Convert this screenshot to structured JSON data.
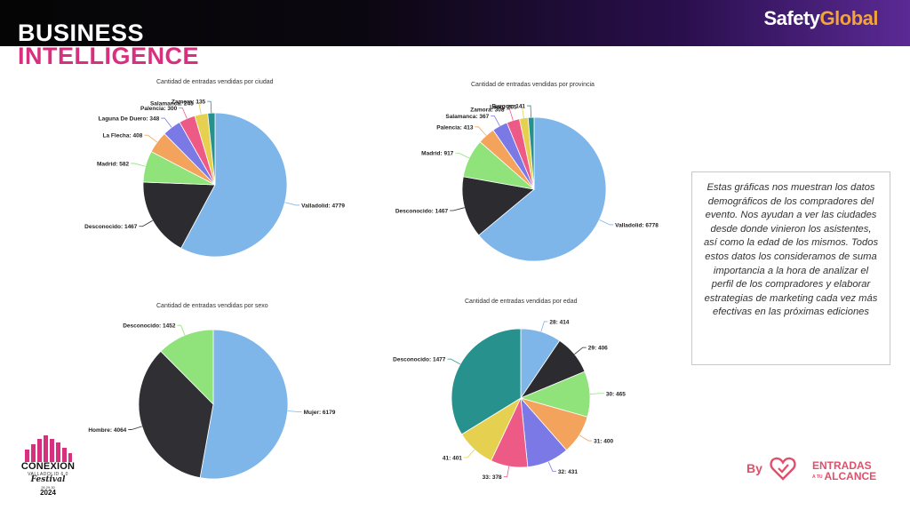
{
  "header": {
    "title_line1": "BUSINESS",
    "title_line2": "INTELLIGENCE",
    "brand_part1": "Safety",
    "brand_part2": "Global",
    "colors": {
      "title_accent": "#d6307f",
      "brand_accent": "#f2a33a"
    }
  },
  "info_text": "Estas gráficas nos muestran los datos demográficos de los compradores del evento. Nos ayudan a ver las ciudades desde donde vinieron los asistentes, así como la edad de los mismos. Todos estos datos los consideramos de suma importancia a la hora de analizar el perfil de los compradores y elaborar estrategias de marketing cada vez más efectivas en las próximas ediciones",
  "footer": {
    "festival_name": "CONEXION",
    "festival_city": "VALLADOLID 6.0",
    "festival_word": "Festival",
    "festival_dates": "28.29.30",
    "festival_year": "2024",
    "by_label": "By",
    "partner_line1": "ENTRADAS",
    "partner_small": "A TU",
    "partner_line2": "ALCANCE"
  },
  "chart_data": [
    {
      "type": "pie",
      "title": "Cantidad de entradas vendidas por ciudad",
      "categories": [
        "Valladolid",
        "Desconocido",
        "Madrid",
        "La Flecha",
        "Laguna De Duero",
        "Palencia",
        "Salamanca",
        "Zamora"
      ],
      "values": [
        4779,
        1467,
        582,
        408,
        348,
        300,
        243,
        135
      ],
      "colors": [
        "#7eb6e9",
        "#2b2b30",
        "#8fe37a",
        "#f4a35c",
        "#7b79e6",
        "#ee5a86",
        "#e5d14f",
        "#26918d"
      ]
    },
    {
      "type": "pie",
      "title": "Cantidad de entradas vendidas por provincia",
      "categories": [
        "Valladolid",
        "Desconocido",
        "Madrid",
        "Palencia",
        "Salamanca",
        "Zamora",
        "León",
        "Burgos"
      ],
      "values": [
        6778,
        1467,
        917,
        413,
        367,
        308,
        205,
        141
      ],
      "colors": [
        "#7eb6e9",
        "#2b2b30",
        "#8fe37a",
        "#f4a35c",
        "#7b79e6",
        "#ee5a86",
        "#e5d14f",
        "#26918d"
      ]
    },
    {
      "type": "pie",
      "title": "Cantidad de entradas vendidas por sexo",
      "categories": [
        "Mujer",
        "Hombre",
        "Desconocido"
      ],
      "values": [
        6179,
        4064,
        1452
      ],
      "colors": [
        "#7eb6e9",
        "#2f2f34",
        "#8fe37a"
      ]
    },
    {
      "type": "pie",
      "title": "Cantidad de entradas vendidas por edad",
      "categories": [
        "28",
        "29",
        "30",
        "31",
        "32",
        "33",
        "41",
        "Desconocido"
      ],
      "values": [
        414,
        406,
        465,
        400,
        431,
        378,
        401,
        1477
      ],
      "colors": [
        "#7eb6e9",
        "#2b2b30",
        "#8fe37a",
        "#f4a35c",
        "#7b79e6",
        "#ee5a86",
        "#e5d14f",
        "#26918d"
      ]
    }
  ]
}
